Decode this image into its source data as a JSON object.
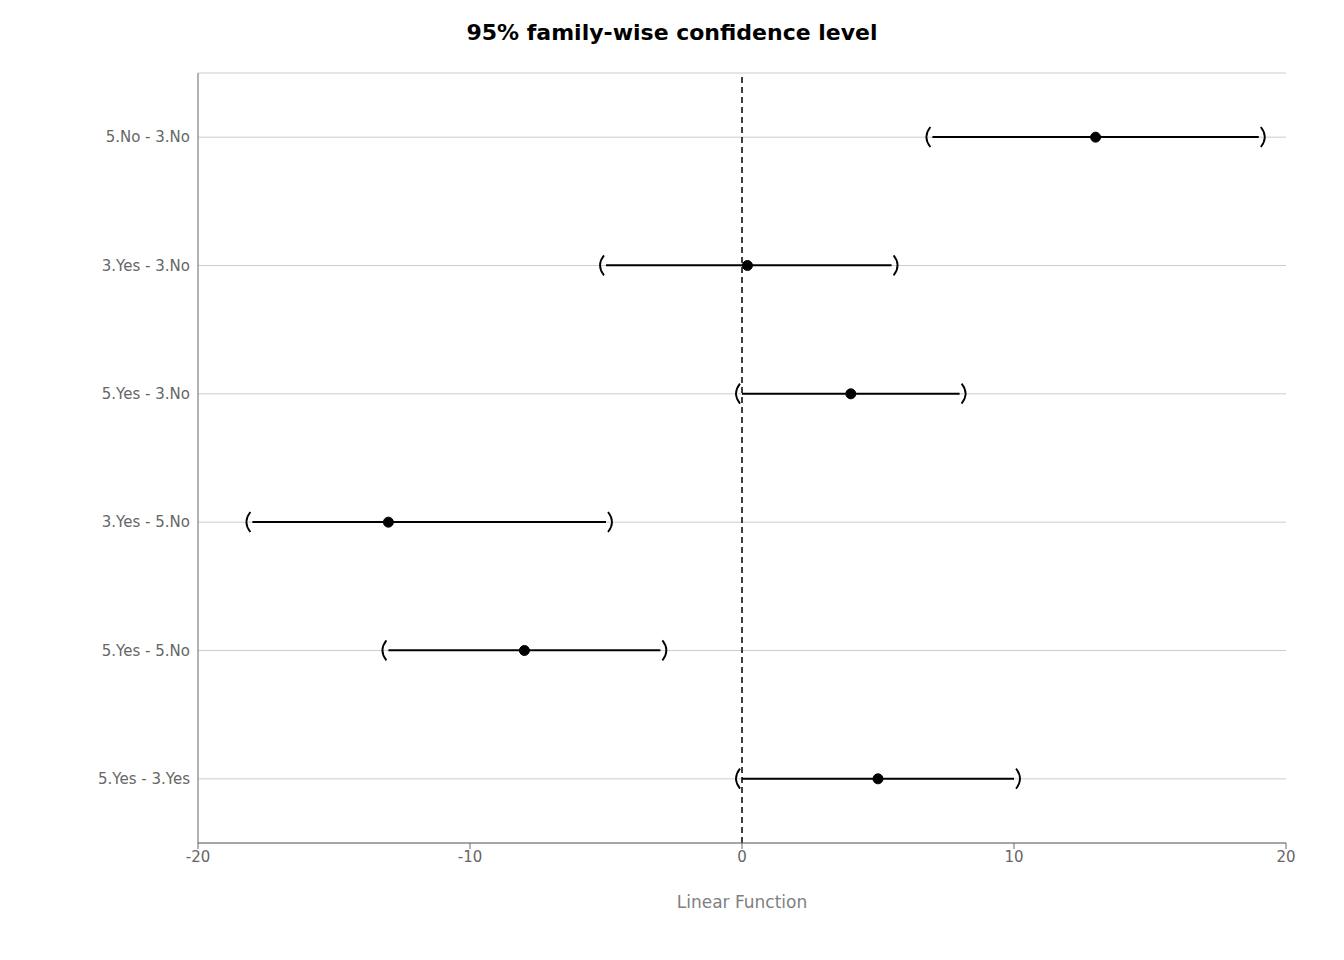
{
  "chart_data": {
    "type": "interval",
    "title": "95% family-wise confidence level",
    "xlabel": "Linear Function",
    "categories": [
      "5.No - 3.No",
      "3.Yes - 3.No",
      "5.Yes - 3.No",
      "3.Yes - 5.No",
      "5.Yes - 5.No",
      "5.Yes - 3.Yes"
    ],
    "values": [
      13.0,
      0.2,
      4.0,
      -13.0,
      -8.0,
      5.0
    ],
    "lower": [
      7.0,
      -5.0,
      0.0,
      -18.0,
      -13.0,
      0.0
    ],
    "upper": [
      19.0,
      5.5,
      8.0,
      -5.0,
      -3.0,
      10.0
    ],
    "xlim": [
      -20,
      20
    ],
    "xticks": [
      -20,
      -10,
      0,
      10,
      20
    ],
    "color": "#000000",
    "grid": true,
    "reference_x": 0,
    "marker": "o"
  }
}
